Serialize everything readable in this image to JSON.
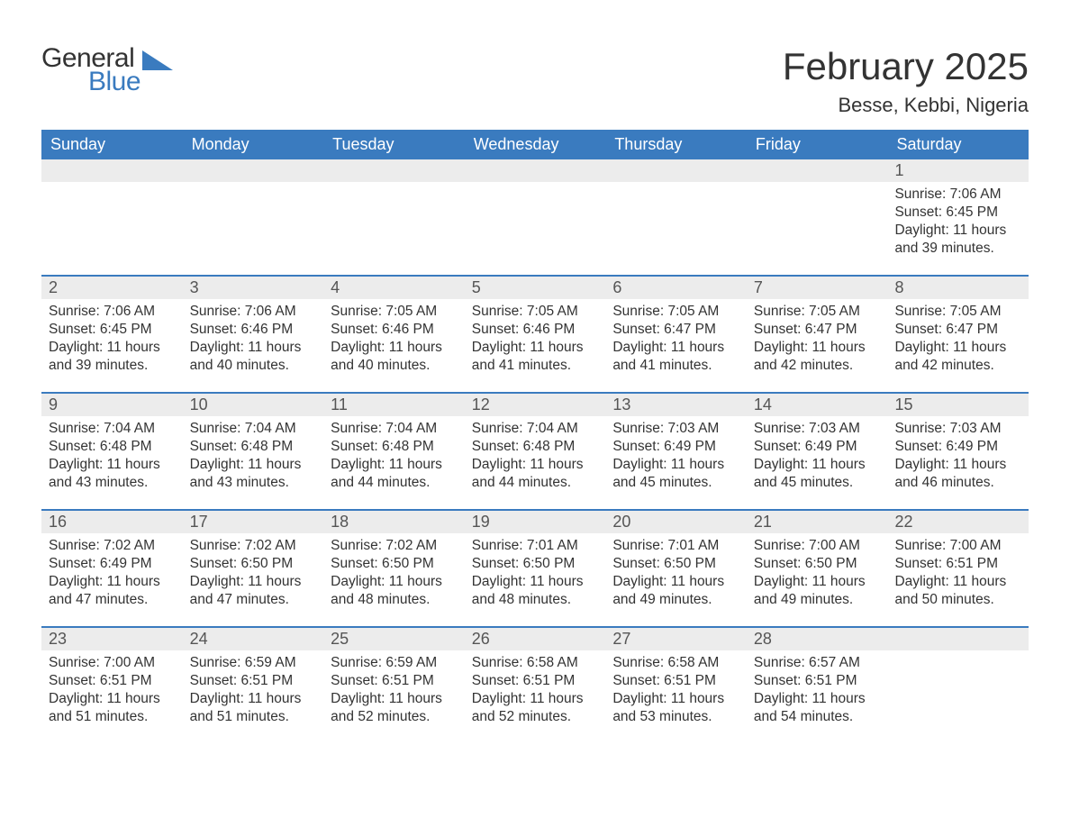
{
  "brand": {
    "word1": "General",
    "word2": "Blue",
    "color_primary": "#3a7bbf",
    "color_text": "#333333"
  },
  "header": {
    "month_title": "February 2025",
    "location": "Besse, Kebbi, Nigeria",
    "title_fontsize": 42,
    "location_fontsize": 22
  },
  "calendar": {
    "header_bg": "#3a7bbf",
    "header_fg": "#ffffff",
    "row_divider_color": "#3a7bbf",
    "daynum_bg": "#ececec",
    "text_color": "#333333",
    "body_fontsize": 15.5,
    "days": [
      "Sunday",
      "Monday",
      "Tuesday",
      "Wednesday",
      "Thursday",
      "Friday",
      "Saturday"
    ],
    "weeks": [
      [
        null,
        null,
        null,
        null,
        null,
        null,
        {
          "n": "1",
          "sunrise": "Sunrise: 7:06 AM",
          "sunset": "Sunset: 6:45 PM",
          "daylight": "Daylight: 11 hours and 39 minutes."
        }
      ],
      [
        {
          "n": "2",
          "sunrise": "Sunrise: 7:06 AM",
          "sunset": "Sunset: 6:45 PM",
          "daylight": "Daylight: 11 hours and 39 minutes."
        },
        {
          "n": "3",
          "sunrise": "Sunrise: 7:06 AM",
          "sunset": "Sunset: 6:46 PM",
          "daylight": "Daylight: 11 hours and 40 minutes."
        },
        {
          "n": "4",
          "sunrise": "Sunrise: 7:05 AM",
          "sunset": "Sunset: 6:46 PM",
          "daylight": "Daylight: 11 hours and 40 minutes."
        },
        {
          "n": "5",
          "sunrise": "Sunrise: 7:05 AM",
          "sunset": "Sunset: 6:46 PM",
          "daylight": "Daylight: 11 hours and 41 minutes."
        },
        {
          "n": "6",
          "sunrise": "Sunrise: 7:05 AM",
          "sunset": "Sunset: 6:47 PM",
          "daylight": "Daylight: 11 hours and 41 minutes."
        },
        {
          "n": "7",
          "sunrise": "Sunrise: 7:05 AM",
          "sunset": "Sunset: 6:47 PM",
          "daylight": "Daylight: 11 hours and 42 minutes."
        },
        {
          "n": "8",
          "sunrise": "Sunrise: 7:05 AM",
          "sunset": "Sunset: 6:47 PM",
          "daylight": "Daylight: 11 hours and 42 minutes."
        }
      ],
      [
        {
          "n": "9",
          "sunrise": "Sunrise: 7:04 AM",
          "sunset": "Sunset: 6:48 PM",
          "daylight": "Daylight: 11 hours and 43 minutes."
        },
        {
          "n": "10",
          "sunrise": "Sunrise: 7:04 AM",
          "sunset": "Sunset: 6:48 PM",
          "daylight": "Daylight: 11 hours and 43 minutes."
        },
        {
          "n": "11",
          "sunrise": "Sunrise: 7:04 AM",
          "sunset": "Sunset: 6:48 PM",
          "daylight": "Daylight: 11 hours and 44 minutes."
        },
        {
          "n": "12",
          "sunrise": "Sunrise: 7:04 AM",
          "sunset": "Sunset: 6:48 PM",
          "daylight": "Daylight: 11 hours and 44 minutes."
        },
        {
          "n": "13",
          "sunrise": "Sunrise: 7:03 AM",
          "sunset": "Sunset: 6:49 PM",
          "daylight": "Daylight: 11 hours and 45 minutes."
        },
        {
          "n": "14",
          "sunrise": "Sunrise: 7:03 AM",
          "sunset": "Sunset: 6:49 PM",
          "daylight": "Daylight: 11 hours and 45 minutes."
        },
        {
          "n": "15",
          "sunrise": "Sunrise: 7:03 AM",
          "sunset": "Sunset: 6:49 PM",
          "daylight": "Daylight: 11 hours and 46 minutes."
        }
      ],
      [
        {
          "n": "16",
          "sunrise": "Sunrise: 7:02 AM",
          "sunset": "Sunset: 6:49 PM",
          "daylight": "Daylight: 11 hours and 47 minutes."
        },
        {
          "n": "17",
          "sunrise": "Sunrise: 7:02 AM",
          "sunset": "Sunset: 6:50 PM",
          "daylight": "Daylight: 11 hours and 47 minutes."
        },
        {
          "n": "18",
          "sunrise": "Sunrise: 7:02 AM",
          "sunset": "Sunset: 6:50 PM",
          "daylight": "Daylight: 11 hours and 48 minutes."
        },
        {
          "n": "19",
          "sunrise": "Sunrise: 7:01 AM",
          "sunset": "Sunset: 6:50 PM",
          "daylight": "Daylight: 11 hours and 48 minutes."
        },
        {
          "n": "20",
          "sunrise": "Sunrise: 7:01 AM",
          "sunset": "Sunset: 6:50 PM",
          "daylight": "Daylight: 11 hours and 49 minutes."
        },
        {
          "n": "21",
          "sunrise": "Sunrise: 7:00 AM",
          "sunset": "Sunset: 6:50 PM",
          "daylight": "Daylight: 11 hours and 49 minutes."
        },
        {
          "n": "22",
          "sunrise": "Sunrise: 7:00 AM",
          "sunset": "Sunset: 6:51 PM",
          "daylight": "Daylight: 11 hours and 50 minutes."
        }
      ],
      [
        {
          "n": "23",
          "sunrise": "Sunrise: 7:00 AM",
          "sunset": "Sunset: 6:51 PM",
          "daylight": "Daylight: 11 hours and 51 minutes."
        },
        {
          "n": "24",
          "sunrise": "Sunrise: 6:59 AM",
          "sunset": "Sunset: 6:51 PM",
          "daylight": "Daylight: 11 hours and 51 minutes."
        },
        {
          "n": "25",
          "sunrise": "Sunrise: 6:59 AM",
          "sunset": "Sunset: 6:51 PM",
          "daylight": "Daylight: 11 hours and 52 minutes."
        },
        {
          "n": "26",
          "sunrise": "Sunrise: 6:58 AM",
          "sunset": "Sunset: 6:51 PM",
          "daylight": "Daylight: 11 hours and 52 minutes."
        },
        {
          "n": "27",
          "sunrise": "Sunrise: 6:58 AM",
          "sunset": "Sunset: 6:51 PM",
          "daylight": "Daylight: 11 hours and 53 minutes."
        },
        {
          "n": "28",
          "sunrise": "Sunrise: 6:57 AM",
          "sunset": "Sunset: 6:51 PM",
          "daylight": "Daylight: 11 hours and 54 minutes."
        },
        null
      ]
    ]
  }
}
